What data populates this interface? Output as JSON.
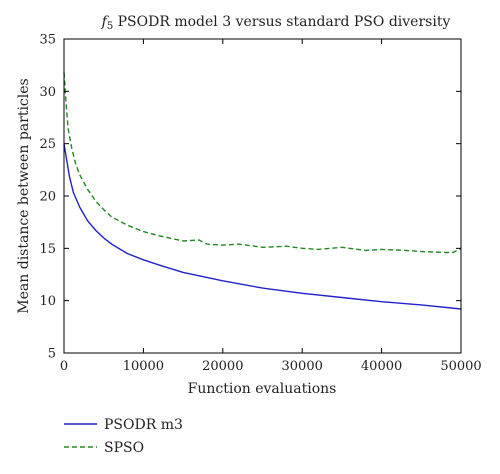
{
  "chart_data": {
    "type": "line",
    "title": {
      "prefix": "f",
      "subscript": "5",
      "text": " PSODR model 3 versus standard PSO diversity"
    },
    "xlabel": "Function evaluations",
    "ylabel": "Mean distance between particles",
    "xlim": [
      0,
      50000
    ],
    "ylim": [
      5,
      35
    ],
    "xticks": [
      0,
      10000,
      20000,
      30000,
      40000,
      50000
    ],
    "xtick_labels": [
      "0",
      "10000",
      "20000",
      "30000",
      "40000",
      "50000"
    ],
    "yticks": [
      5,
      10,
      15,
      20,
      25,
      30,
      35
    ],
    "ytick_labels": [
      "5",
      "10",
      "15",
      "20",
      "25",
      "30",
      "35"
    ],
    "grid": false,
    "legend_position": "bottom-left, below plot",
    "series": [
      {
        "name": "PSODR m3",
        "color": "#2222cc",
        "line_style": "solid",
        "x": [
          0,
          300,
          700,
          1200,
          2000,
          3000,
          4000,
          5000,
          6000,
          8000,
          10000,
          12000,
          15000,
          20000,
          25000,
          30000,
          35000,
          40000,
          45000,
          50000
        ],
        "y": [
          25.0,
          23.6,
          21.8,
          20.3,
          18.9,
          17.6,
          16.7,
          16.0,
          15.4,
          14.5,
          13.9,
          13.4,
          12.7,
          11.9,
          11.2,
          10.7,
          10.3,
          9.9,
          9.6,
          9.2
        ]
      },
      {
        "name": "SPSO",
        "color": "#228822",
        "line_style": "dashed",
        "x": [
          0,
          200,
          500,
          1000,
          1500,
          2000,
          3000,
          4000,
          5000,
          6000,
          8000,
          10000,
          12000,
          15000,
          17000,
          18000,
          20000,
          22000,
          25000,
          28000,
          30000,
          32000,
          35000,
          38000,
          40000,
          43000,
          45000,
          48000,
          49000,
          50000
        ],
        "y": [
          31.8,
          29.5,
          26.5,
          24.5,
          23.0,
          22.0,
          20.6,
          19.5,
          18.7,
          18.0,
          17.2,
          16.6,
          16.2,
          15.7,
          15.8,
          15.4,
          15.3,
          15.4,
          15.1,
          15.2,
          15.0,
          14.9,
          15.1,
          14.8,
          14.9,
          14.8,
          14.7,
          14.6,
          14.6,
          15.0
        ]
      }
    ]
  }
}
